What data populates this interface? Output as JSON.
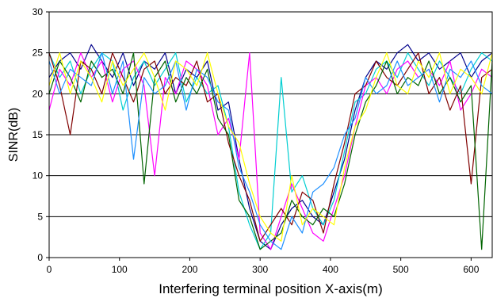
{
  "chart_data": {
    "type": "line",
    "title": "",
    "xlabel": "Interfering terminal position  X-axis(m)",
    "ylabel": "SINR(dB)",
    "xlim": [
      0,
      630
    ],
    "ylim": [
      0,
      30
    ],
    "x_ticks": [
      0,
      100,
      200,
      300,
      400,
      500,
      600
    ],
    "y_ticks": [
      0,
      5,
      10,
      15,
      20,
      25,
      30
    ],
    "grid": "horizontal",
    "legend": "none",
    "x": [
      0,
      15,
      30,
      45,
      60,
      75,
      90,
      105,
      120,
      135,
      150,
      165,
      180,
      195,
      210,
      225,
      240,
      255,
      270,
      285,
      300,
      315,
      330,
      345,
      360,
      375,
      390,
      405,
      420,
      435,
      450,
      465,
      480,
      495,
      510,
      525,
      540,
      555,
      570,
      585,
      600,
      615,
      630
    ],
    "series": [
      {
        "color": "#00008b",
        "values": [
          22,
          24,
          25,
          23,
          26,
          24,
          22,
          25,
          21,
          24,
          23,
          25,
          20,
          23,
          22,
          24,
          18,
          19,
          12,
          6,
          2,
          1,
          4,
          6,
          7,
          5,
          4,
          8,
          12,
          18,
          22,
          24,
          23,
          25,
          26,
          24,
          25,
          23,
          24,
          25,
          22,
          24,
          25
        ]
      },
      {
        "color": "#00ced1",
        "values": [
          25,
          22,
          24,
          20,
          23,
          25,
          24,
          18,
          22,
          24,
          21,
          23,
          25,
          19,
          22,
          20,
          21,
          16,
          8,
          4,
          1,
          3,
          22,
          8,
          10,
          6,
          4,
          7,
          13,
          19,
          20,
          23,
          24,
          22,
          25,
          23,
          21,
          24,
          22,
          20,
          23,
          25,
          24
        ]
      },
      {
        "color": "#ff00ff",
        "values": [
          18,
          23,
          21,
          25,
          22,
          24,
          19,
          23,
          24,
          21,
          10,
          22,
          20,
          24,
          23,
          21,
          15,
          17,
          12,
          25,
          3,
          1,
          5,
          9,
          6,
          3,
          2,
          6,
          10,
          16,
          21,
          22,
          20,
          23,
          24,
          22,
          23,
          21,
          24,
          18,
          20,
          23,
          22
        ]
      },
      {
        "color": "#800000",
        "values": [
          25,
          21,
          15,
          24,
          23,
          20,
          25,
          22,
          19,
          23,
          24,
          20,
          22,
          21,
          24,
          19,
          20,
          14,
          10,
          7,
          2,
          4,
          6,
          4,
          8,
          7,
          3,
          9,
          14,
          20,
          21,
          24,
          22,
          21,
          23,
          25,
          20,
          22,
          18,
          21,
          9,
          22,
          23
        ]
      },
      {
        "color": "#006400",
        "values": [
          20,
          24,
          22,
          19,
          24,
          22,
          23,
          20,
          25,
          9,
          22,
          24,
          19,
          22,
          20,
          23,
          17,
          15,
          7,
          5,
          1,
          2,
          3,
          7,
          5,
          4,
          6,
          5,
          9,
          15,
          19,
          21,
          24,
          20,
          22,
          21,
          24,
          20,
          22,
          19,
          21,
          1,
          24
        ]
      },
      {
        "color": "#1e90ff",
        "values": [
          24,
          20,
          23,
          22,
          21,
          25,
          20,
          24,
          12,
          22,
          20,
          21,
          24,
          18,
          23,
          22,
          19,
          18,
          11,
          8,
          4,
          2,
          1,
          5,
          3,
          8,
          9,
          11,
          15,
          17,
          22,
          20,
          21,
          24,
          21,
          22,
          23,
          19,
          23,
          22,
          24,
          21,
          20
        ]
      },
      {
        "color": "#ffff00",
        "values": [
          21,
          25,
          20,
          24,
          22,
          19,
          24,
          21,
          23,
          25,
          22,
          18,
          24,
          23,
          21,
          25,
          20,
          16,
          14,
          9,
          5,
          3,
          2,
          10,
          4,
          6,
          5,
          4,
          11,
          16,
          18,
          22,
          25,
          21,
          20,
          24,
          22,
          25,
          20,
          23,
          22,
          20,
          25
        ]
      }
    ]
  }
}
